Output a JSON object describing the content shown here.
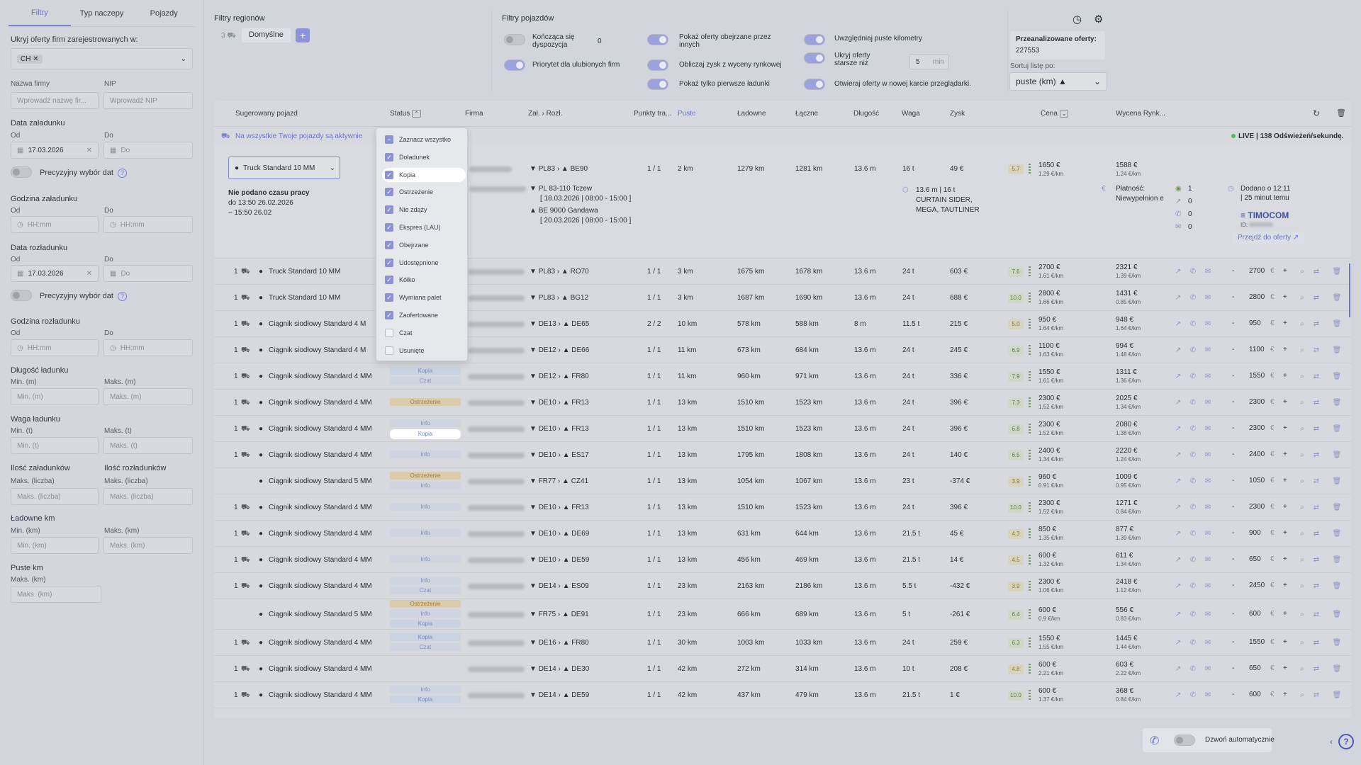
{
  "sidebar": {
    "tabs": [
      "Filtry",
      "Typ naczepy",
      "Pojazdy"
    ],
    "hide_label": "Ukryj oferty firm zarejestrowanych w:",
    "hide_value": "CH",
    "company_label": "Nazwa firmy",
    "company_ph": "Wprowadź nazwę fir...",
    "nip_label": "NIP",
    "nip_ph": "Wprowadź NIP",
    "load_date_label": "Data załadunku",
    "from": "Od",
    "to": "Do",
    "load_date_from": "17.03.2026",
    "date_ph": "Do",
    "precise": "Precyzyjny wybór dat",
    "load_time_label": "Godzina załadunku",
    "time_ph": "HH:mm",
    "unload_date_label": "Data rozładunku",
    "unload_date_from": "17.03.2026",
    "unload_time_label": "Godzina rozładunku",
    "length_label": "Długość ładunku",
    "min_m": "Min. (m)",
    "max_m": "Maks. (m)",
    "weight_label": "Waga ładunku",
    "min_t": "Min. (t)",
    "max_t": "Maks. (t)",
    "loads_label": "Ilość załadunków",
    "unloads_label": "Ilość rozładunków",
    "max_count": "Maks. (liczba)",
    "laden_label": "Ładowne km",
    "min_km": "Min. (km)",
    "max_km": "Maks. (km)",
    "empty_label": "Puste km"
  },
  "top": {
    "regions_title": "Filtry regionów",
    "region_count": "3",
    "region_default": "Domyślne",
    "add": "+",
    "vehicles_title": "Filtry pojazdów",
    "f1": "Kończąca się dyspozycja",
    "f1_val": "0",
    "f2": "Priorytet dla ulubionych firm",
    "f3": "Pokaż oferty obejrzane przez innych",
    "f4": "Obliczaj zysk z wyceny rynkowej",
    "f5": "Pokaż tylko pierwsze ładunki",
    "f6": "Uwzględniaj puste kilometry",
    "f7": "Ukryj oferty starsze niż",
    "f7_val": "5",
    "f7_unit": "min",
    "f8": "Otwieraj oferty w nowej karcie przeglądarki.",
    "analyzed_label": "Przeanalizowane oferty:",
    "analyzed_value": "227553",
    "sort_label": "Sortuj listę po:",
    "sort_value": "puste (km) ▲"
  },
  "table": {
    "headers": {
      "vehicle": "Sugerowany pojazd",
      "status": "Status",
      "firm": "Firma",
      "route_from": "Zał.",
      "route_to": "Rozł.",
      "points": "Punkty tra...",
      "empty": "Puste",
      "laden": "Ładowne",
      "total": "Łączne",
      "length": "Długość",
      "weight": "Waga",
      "profit": "Zysk",
      "price": "Cena",
      "market": "Wycena Rynk..."
    },
    "banner": "Na wszystkie Twoje pojazdy są aktywnie",
    "live": "LIVE | 138 Odświeżeń/sekundę.",
    "expanded": {
      "vehicle_select": "Truck Standard 10 MM",
      "no_time": "Nie podano czasu pracy",
      "time1": "do 13:50 26.02.2026",
      "time2": "– 15:50 26.02",
      "from": "PL83",
      "to": "BE90",
      "points": "1 / 1",
      "empty": "2 km",
      "laden": "1279 km",
      "total": "1281 km",
      "length": "13.6 m",
      "weight": "16 t",
      "profit": "49 €",
      "score": "5.7",
      "price": "1650 €",
      "price_km": "1.29 €/km",
      "market": "1588 €",
      "market_km": "1.24 €/km",
      "step": "1650",
      "stop1": "PL 83-110 Tczew",
      "stop1_date": "[ 18.03.2026 | 08:00 - 15:00 ]",
      "stop2": "BE 9000 Gandawa",
      "stop2_date": "[ 20.03.2026 | 08:00 - 15:00 ]",
      "spec1": "13.6 m | 16 t",
      "spec2": "CURTAIN SIDER,",
      "spec3": "MEGA, TAUTLINER",
      "pay_label": "Płatność:",
      "pay_value": "Niewypełnion e",
      "cnt1": "1",
      "cnt2": "0",
      "cnt3": "0",
      "cnt4": "0",
      "added": "Dodano o 12:11",
      "added_ago": "| 25 minut temu",
      "source": "TIMOCOM",
      "id_label": "ID:",
      "goto": "Przejdź do oferty ↗"
    },
    "rows": [
      {
        "n": "1",
        "v": "Truck Standard 10 MM",
        "badges": [],
        "from": "PL83",
        "to": "RO70",
        "pts": "1 / 1",
        "e": "3 km",
        "l": "1675 km",
        "t": "1678 km",
        "len": "13.6 m",
        "w": "24 t",
        "p": "603 €",
        "s": "7.6",
        "pr": "2700 €",
        "prk": "1.61 €/km",
        "m": "2321 €",
        "mk": "1.39 €/km",
        "st": "2700"
      },
      {
        "n": "1",
        "v": "Truck Standard 10 MM",
        "badges": [],
        "from": "PL83",
        "to": "BG12",
        "pts": "1 / 1",
        "e": "3 km",
        "l": "1687 km",
        "t": "1690 km",
        "len": "13.6 m",
        "w": "24 t",
        "p": "688 €",
        "s": "10.0",
        "pr": "2800 €",
        "prk": "1.66 €/km",
        "m": "1431 €",
        "mk": "0.85 €/km",
        "st": "2800"
      },
      {
        "n": "1",
        "v": "Ciągnik siodłowy Standard 4 M",
        "badges": [],
        "from": "DE13",
        "to": "DE65",
        "pts": "2 / 2",
        "e": "10 km",
        "l": "578 km",
        "t": "588 km",
        "len": "8 m",
        "w": "11.5 t",
        "p": "215 €",
        "s": "5.0",
        "pr": "950 €",
        "prk": "1.64 €/km",
        "m": "948 €",
        "mk": "1.64 €/km",
        "st": "950"
      },
      {
        "n": "1",
        "v": "Ciągnik siodłowy Standard 4 M",
        "badges": [
          "Kopia"
        ],
        "from": "DE12",
        "to": "DE66",
        "pts": "1 / 1",
        "e": "11 km",
        "l": "673 km",
        "t": "684 km",
        "len": "13.6 m",
        "w": "24 t",
        "p": "245 €",
        "s": "6.9",
        "pr": "1100 €",
        "prk": "1.63 €/km",
        "m": "994 €",
        "mk": "1.48 €/km",
        "st": "1100"
      },
      {
        "n": "1",
        "v": "Ciągnik siodłowy Standard 4 MM",
        "badges": [
          "Kopia",
          "Czat"
        ],
        "from": "DE12",
        "to": "FR80",
        "pts": "1 / 1",
        "e": "11 km",
        "l": "960 km",
        "t": "971 km",
        "len": "13.6 m",
        "w": "24 t",
        "p": "336 €",
        "s": "7.9",
        "pr": "1550 €",
        "prk": "1.61 €/km",
        "m": "1311 €",
        "mk": "1.36 €/km",
        "st": "1550"
      },
      {
        "n": "1",
        "v": "Ciągnik siodłowy Standard 4 MM",
        "badges": [
          "Ostrzeżenie"
        ],
        "from": "DE10",
        "to": "FR13",
        "pts": "1 / 1",
        "e": "13 km",
        "l": "1510 km",
        "t": "1523 km",
        "len": "13.6 m",
        "w": "24 t",
        "p": "396 €",
        "s": "7.3",
        "pr": "2300 €",
        "prk": "1.52 €/km",
        "m": "2025 €",
        "mk": "1.34 €/km",
        "st": "2300"
      },
      {
        "n": "1",
        "v": "Ciągnik siodłowy Standard 4 MM",
        "badges": [
          "Info",
          "Kopia"
        ],
        "from": "DE10",
        "to": "FR13",
        "pts": "1 / 1",
        "e": "13 km",
        "l": "1510 km",
        "t": "1523 km",
        "len": "13.6 m",
        "w": "24 t",
        "p": "396 €",
        "s": "6.8",
        "pr": "2300 €",
        "prk": "1.52 €/km",
        "m": "2080 €",
        "mk": "1.38 €/km",
        "st": "2300"
      },
      {
        "n": "1",
        "v": "Ciągnik siodłowy Standard 4 MM",
        "badges": [
          "Info"
        ],
        "from": "DE10",
        "to": "ES17",
        "pts": "1 / 1",
        "e": "13 km",
        "l": "1795 km",
        "t": "1808 km",
        "len": "13.6 m",
        "w": "24 t",
        "p": "140 €",
        "s": "6.5",
        "pr": "2400 €",
        "prk": "1.34 €/km",
        "m": "2220 €",
        "mk": "1.24 €/km",
        "st": "2400"
      },
      {
        "n": "",
        "v": "Ciągnik siodłowy Standard 5 MM",
        "badges": [
          "Ostrzeżenie",
          "Info"
        ],
        "from": "FR77",
        "to": "CZ41",
        "pts": "1 / 1",
        "e": "13 km",
        "l": "1054 km",
        "t": "1067 km",
        "len": "13.6 m",
        "w": "23 t",
        "p": "-374 €",
        "s": "3.9",
        "pr": "960 €",
        "prk": "0.91 €/km",
        "m": "1009 €",
        "mk": "0.95 €/km",
        "st": "1050"
      },
      {
        "n": "1",
        "v": "Ciągnik siodłowy Standard 4 MM",
        "badges": [
          "Info"
        ],
        "from": "DE10",
        "to": "FR13",
        "pts": "1 / 1",
        "e": "13 km",
        "l": "1510 km",
        "t": "1523 km",
        "len": "13.6 m",
        "w": "24 t",
        "p": "396 €",
        "s": "10.0",
        "pr": "2300 €",
        "prk": "1.52 €/km",
        "m": "1271 €",
        "mk": "0.84 €/km",
        "st": "2300"
      },
      {
        "n": "1",
        "v": "Ciągnik siodłowy Standard 4 MM",
        "badges": [
          "Info"
        ],
        "from": "DE10",
        "to": "DE69",
        "pts": "1 / 1",
        "e": "13 km",
        "l": "631 km",
        "t": "644 km",
        "len": "13.6 m",
        "w": "21.5 t",
        "p": "45 €",
        "s": "4.3",
        "pr": "850 €",
        "prk": "1.35 €/km",
        "m": "877 €",
        "mk": "1.39 €/km",
        "st": "900"
      },
      {
        "n": "1",
        "v": "Ciągnik siodłowy Standard 4 MM",
        "badges": [
          "Info"
        ],
        "from": "DE10",
        "to": "DE59",
        "pts": "1 / 1",
        "e": "13 km",
        "l": "456 km",
        "t": "469 km",
        "len": "13.6 m",
        "w": "21.5 t",
        "p": "14 €",
        "s": "4.5",
        "pr": "600 €",
        "prk": "1.32 €/km",
        "m": "611 €",
        "mk": "1.34 €/km",
        "st": "650"
      },
      {
        "n": "1",
        "v": "Ciągnik siodłowy Standard 4 MM",
        "badges": [
          "Info",
          "Czat"
        ],
        "from": "DE14",
        "to": "ES09",
        "pts": "1 / 1",
        "e": "23 km",
        "l": "2163 km",
        "t": "2186 km",
        "len": "13.6 m",
        "w": "5.5 t",
        "p": "-432 €",
        "s": "3.9",
        "pr": "2300 €",
        "prk": "1.06 €/km",
        "m": "2418 €",
        "mk": "1.12 €/km",
        "st": "2450"
      },
      {
        "n": "",
        "v": "Ciągnik siodłowy Standard 5 MM",
        "badges": [
          "Ostrzeżenie",
          "Info",
          "Kopia"
        ],
        "from": "FR75",
        "to": "DE91",
        "pts": "1 / 1",
        "e": "23 km",
        "l": "666 km",
        "t": "689 km",
        "len": "13.6 m",
        "w": "5 t",
        "p": "-261 €",
        "s": "6.4",
        "pr": "600 €",
        "prk": "0.9 €/km",
        "m": "556 €",
        "mk": "0.83 €/km",
        "st": "600"
      },
      {
        "n": "1",
        "v": "Ciągnik siodłowy Standard 4 MM",
        "badges": [
          "Kopia",
          "Czat"
        ],
        "from": "DE16",
        "to": "FR80",
        "pts": "1 / 1",
        "e": "30 km",
        "l": "1003 km",
        "t": "1033 km",
        "len": "13.6 m",
        "w": "24 t",
        "p": "259 €",
        "s": "6.3",
        "pr": "1550 €",
        "prk": "1.55 €/km",
        "m": "1445 €",
        "mk": "1.44 €/km",
        "st": "1550"
      },
      {
        "n": "1",
        "v": "Ciągnik siodłowy Standard 4 MM",
        "badges": [],
        "from": "DE14",
        "to": "DE30",
        "pts": "1 / 1",
        "e": "42 km",
        "l": "272 km",
        "t": "314 km",
        "len": "13.6 m",
        "w": "10 t",
        "p": "208 €",
        "s": "4.8",
        "pr": "600 €",
        "prk": "2.21 €/km",
        "m": "603 €",
        "mk": "2.22 €/km",
        "st": "650"
      },
      {
        "n": "1",
        "v": "Ciągnik siodłowy Standard 4 MM",
        "badges": [
          "Info",
          "Kopia"
        ],
        "from": "DE14",
        "to": "DE59",
        "pts": "1 / 1",
        "e": "42 km",
        "l": "437 km",
        "t": "479 km",
        "len": "13.6 m",
        "w": "21.5 t",
        "p": "1 €",
        "s": "10.0",
        "pr": "600 €",
        "prk": "1.37 €/km",
        "m": "368 €",
        "mk": "0.84 €/km",
        "st": "600"
      }
    ]
  },
  "status_dropdown": [
    {
      "label": "Zaznacz wszystko",
      "checked": "partial"
    },
    {
      "label": "Doładunek",
      "checked": "yes"
    },
    {
      "label": "Kopia",
      "checked": "yes"
    },
    {
      "label": "Ostrzeżenie",
      "checked": "yes"
    },
    {
      "label": "Nie zdąży",
      "checked": "yes"
    },
    {
      "label": "Ekspres (LAU)",
      "checked": "yes"
    },
    {
      "label": "Obejrzane",
      "checked": "yes"
    },
    {
      "label": "Udostępnione",
      "checked": "yes"
    },
    {
      "label": "Kółko",
      "checked": "yes"
    },
    {
      "label": "Wymiana palet",
      "checked": "yes"
    },
    {
      "label": "Zaofertowane",
      "checked": "yes"
    },
    {
      "label": "Czat",
      "checked": "no"
    },
    {
      "label": "Usunięte",
      "checked": "no"
    }
  ],
  "footer": {
    "auto_call": "Dzwoń automatycznie"
  },
  "colors": {
    "accent": "#7b83e0",
    "live": "#3fbf4a",
    "warning": "#b07a26"
  }
}
